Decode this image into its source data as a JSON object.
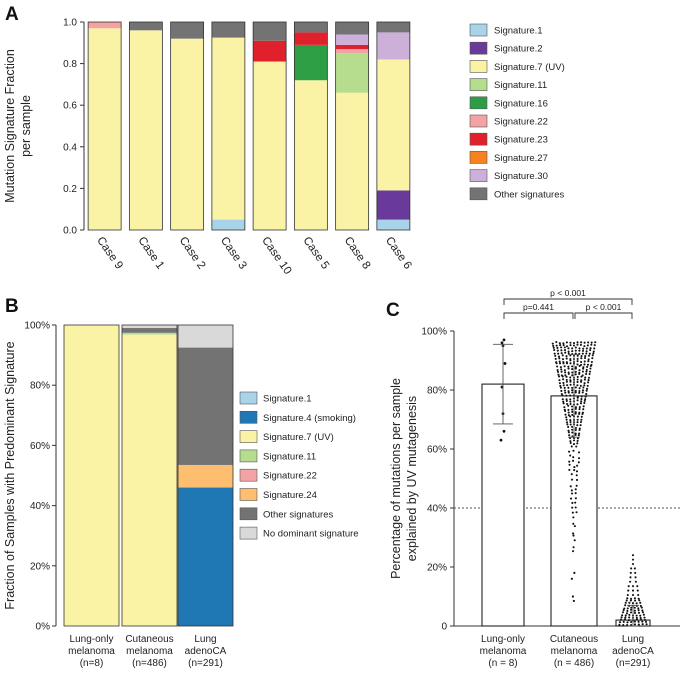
{
  "chart_data": [
    {
      "panel": "A",
      "type": "bar",
      "stacked": true,
      "ylabel": "Mutation Signature Fraction per sample",
      "ylim": [
        0,
        1.0
      ],
      "yticks": [
        "0.0",
        "0.2",
        "0.4",
        "0.6",
        "0.8",
        "1.0"
      ],
      "categories": [
        "Case 9",
        "Case 1",
        "Case 2",
        "Case 3",
        "Case 10",
        "Case 5",
        "Case 8",
        "Case 6"
      ],
      "series": [
        {
          "name": "Signature.1",
          "color": "#a8d3e8",
          "values": [
            0,
            0,
            0,
            0.05,
            0,
            0,
            0,
            0.05
          ]
        },
        {
          "name": "Signature.2",
          "color": "#6a3a9a",
          "values": [
            0,
            0,
            0,
            0,
            0,
            0,
            0,
            0.14
          ]
        },
        {
          "name": "Signature.7 (UV)",
          "color": "#faf3a5",
          "values": [
            0.97,
            0.96,
            0.92,
            0.875,
            0.81,
            0.72,
            0.66,
            0.63
          ]
        },
        {
          "name": "Signature.11",
          "color": "#b6dc8e",
          "values": [
            0,
            0,
            0,
            0,
            0,
            0,
            0.19,
            0
          ]
        },
        {
          "name": "Signature.16",
          "color": "#2e9e44",
          "values": [
            0,
            0,
            0,
            0,
            0,
            0.17,
            0,
            0
          ]
        },
        {
          "name": "Signature.22",
          "color": "#f4a3a3",
          "values": [
            0.03,
            0,
            0,
            0,
            0,
            0,
            0.02,
            0
          ]
        },
        {
          "name": "Signature.23",
          "color": "#e0202a",
          "values": [
            0,
            0,
            0,
            0,
            0.1,
            0.06,
            0.02,
            0
          ]
        },
        {
          "name": "Signature.27",
          "color": "#f7821f",
          "values": [
            0,
            0,
            0,
            0,
            0,
            0,
            0,
            0
          ]
        },
        {
          "name": "Signature.30",
          "color": "#ccb0da",
          "values": [
            0,
            0,
            0,
            0,
            0,
            0,
            0.05,
            0.13
          ]
        },
        {
          "name": "Other signatures",
          "color": "#737373",
          "values": [
            0,
            0.04,
            0.08,
            0.075,
            0.09,
            0.05,
            0.06,
            0.05
          ]
        }
      ]
    },
    {
      "panel": "B",
      "type": "bar",
      "stacked": true,
      "ylabel": "Fraction of Samples with Predominant Signature",
      "ylim": [
        0,
        100
      ],
      "yticks": [
        "0%",
        "20%",
        "40%",
        "60%",
        "80%",
        "100%"
      ],
      "categories": [
        {
          "lines": [
            "Lung-only",
            "melanoma",
            "(n=8)"
          ]
        },
        {
          "lines": [
            "Cutaneous",
            "melanoma",
            "(n=486)"
          ]
        },
        {
          "lines": [
            "Lung",
            "adenoCA",
            "(n=291)"
          ]
        }
      ],
      "series": [
        {
          "name": "Signature.1",
          "color": "#a8d3e8",
          "values": [
            0,
            0,
            0
          ]
        },
        {
          "name": "Signature.4 (smoking)",
          "color": "#1f78b4",
          "values": [
            0,
            0,
            46
          ]
        },
        {
          "name": "Signature.7 (UV)",
          "color": "#faf3a5",
          "values": [
            100,
            96.8,
            0
          ]
        },
        {
          "name": "Signature.11",
          "color": "#b6dc8e",
          "values": [
            0,
            0.6,
            0
          ]
        },
        {
          "name": "Signature.22",
          "color": "#f4a3a3",
          "values": [
            0,
            0,
            0
          ]
        },
        {
          "name": "Signature.24",
          "color": "#fdbf6f",
          "values": [
            0,
            0,
            7.5
          ]
        },
        {
          "name": "Other signatures",
          "color": "#737373",
          "values": [
            0,
            1.6,
            39
          ]
        },
        {
          "name": "No dominant signature",
          "color": "#d9d9d9",
          "values": [
            0,
            1.0,
            7.5
          ]
        }
      ]
    },
    {
      "panel": "C",
      "type": "scatter",
      "ylabel": "Percentage of mutations per sample explained by UV mutagenesis",
      "ylim": [
        0,
        100
      ],
      "yticks": [
        "0",
        "20%",
        "40%",
        "60%",
        "80%",
        "100%"
      ],
      "reference_line": 40,
      "categories": [
        {
          "lines": [
            "Lung-only",
            "melanoma",
            "(n = 8)"
          ]
        },
        {
          "lines": [
            "Cutaneous",
            "melanoma",
            "(n = 486)"
          ]
        },
        {
          "lines": [
            "Lung",
            "adenoCA",
            "(n=291)"
          ]
        }
      ],
      "groups": [
        {
          "mean": 82,
          "sd_low": 68.5,
          "sd_high": 95.5,
          "points": [
            63,
            66,
            72,
            81,
            89,
            95,
            96,
            97
          ]
        },
        {
          "mean": 78,
          "sd_low": 64,
          "sd_high": 92
        },
        {
          "mean": 2,
          "sd_low": 0,
          "sd_high": 7
        }
      ],
      "comparisons": [
        {
          "from": 0,
          "to": 1,
          "label": "p=0.441"
        },
        {
          "from": 1,
          "to": 2,
          "label": "p < 0.001"
        },
        {
          "from": 0,
          "to": 2,
          "label": "p < 0.001"
        }
      ]
    }
  ]
}
